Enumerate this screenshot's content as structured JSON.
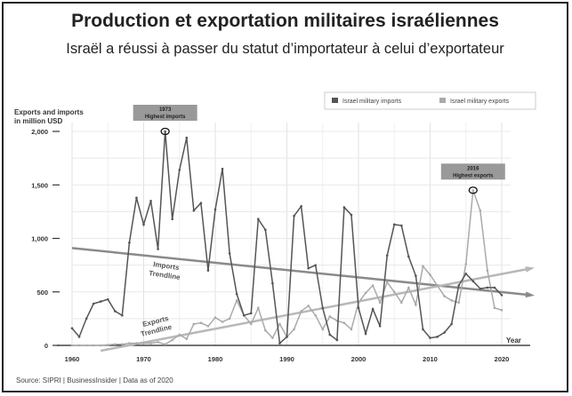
{
  "title": "Production et exportation militaires israéliennes",
  "subtitle": "Israël a réussi à passer du statut d’importateur à celui d’exportateur",
  "source": "Source: SIPRI | BusinessInsider | Data as of 2020",
  "chart_data": {
    "type": "line",
    "ylabel_line1": "Exports and imports",
    "ylabel_line2": "in million USD",
    "xlabel": "Year",
    "xlim": [
      1960,
      2022
    ],
    "ylim": [
      0,
      2000
    ],
    "x_ticks": [
      "1960",
      "1970",
      "1980",
      "1990",
      "2000",
      "2010",
      "2020"
    ],
    "y_ticks": [
      "0",
      "500",
      "1,000",
      "1,500",
      "2,000"
    ],
    "grid": true,
    "legend_position": "top-right",
    "colors": {
      "imports": "#555555",
      "exports": "#aaaaaa"
    },
    "years": [
      1960,
      1961,
      1962,
      1963,
      1964,
      1965,
      1966,
      1967,
      1968,
      1969,
      1970,
      1971,
      1972,
      1973,
      1974,
      1975,
      1976,
      1977,
      1978,
      1979,
      1980,
      1981,
      1982,
      1983,
      1984,
      1985,
      1986,
      1987,
      1988,
      1989,
      1990,
      1991,
      1992,
      1993,
      1994,
      1995,
      1996,
      1997,
      1998,
      1999,
      2000,
      2001,
      2002,
      2003,
      2004,
      2005,
      2006,
      2007,
      2008,
      2009,
      2010,
      2011,
      2012,
      2013,
      2014,
      2015,
      2016,
      2017,
      2018,
      2019,
      2020
    ],
    "series": [
      {
        "name": "Israel military imports",
        "values": [
          160,
          80,
          250,
          390,
          410,
          430,
          320,
          280,
          960,
          1380,
          1130,
          1350,
          900,
          2000,
          1180,
          1640,
          1940,
          1260,
          1330,
          700,
          1270,
          1650,
          860,
          480,
          280,
          300,
          1180,
          1080,
          580,
          20,
          80,
          1210,
          1300,
          720,
          750,
          350,
          100,
          50,
          1290,
          1220,
          350,
          110,
          340,
          180,
          840,
          1130,
          1120,
          830,
          650,
          150,
          70,
          80,
          120,
          200,
          560,
          670,
          600,
          530,
          540,
          540,
          470
        ]
      },
      {
        "name": "Israel military exports",
        "values": [
          0,
          0,
          0,
          0,
          0,
          5,
          10,
          10,
          20,
          20,
          20,
          20,
          30,
          10,
          50,
          100,
          60,
          200,
          210,
          180,
          260,
          220,
          250,
          420,
          280,
          200,
          350,
          140,
          70,
          200,
          80,
          150,
          320,
          370,
          280,
          150,
          270,
          230,
          210,
          150,
          400,
          490,
          560,
          400,
          590,
          500,
          400,
          540,
          380,
          740,
          660,
          560,
          460,
          420,
          400,
          760,
          1450,
          1260,
          700,
          350,
          330
        ]
      }
    ],
    "trendlines": [
      {
        "label_line1": "Imports",
        "label_line2": "Trendline",
        "from": [
          1960,
          910
        ],
        "to": [
          2021,
          470
        ]
      },
      {
        "label_line1": "Exports",
        "label_line2": "Trendline",
        "from": [
          1964,
          -50
        ],
        "to": [
          2021,
          720
        ]
      }
    ],
    "annotations": [
      {
        "year_label": "1973",
        "text": "Highest imports",
        "x": 1973,
        "y": 2000
      },
      {
        "year_label": "2016",
        "text": "Highest exports",
        "x": 2016,
        "y": 1450
      }
    ]
  }
}
